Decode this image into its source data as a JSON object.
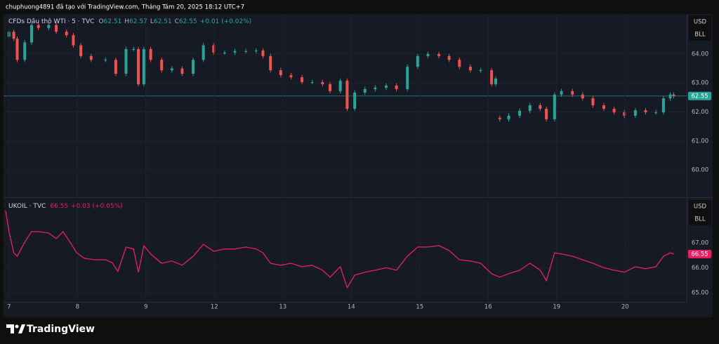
{
  "watermark": "chuphuong4891 đã tạo với TradingView.com, Tháng Tám 20, 2025 18:12 UTC+7",
  "brand": "TradingView",
  "chart_data": [
    {
      "type": "candlestick",
      "title": "CFDs Dầu thô WTI · 5 · TVC",
      "ohlc": [
        {
          "label": "O",
          "value": 62.51
        },
        {
          "label": "H",
          "value": 62.57
        },
        {
          "label": "L",
          "value": 62.51
        },
        {
          "label": "C",
          "value": 62.55
        }
      ],
      "change": "+0.01 (+0.02%)",
      "units": [
        "USD",
        "BLL"
      ],
      "up_color": "#26a69a",
      "down_color": "#ef5350",
      "grid": true,
      "xlim": [
        -0.08,
        9.9
      ],
      "ylim": [
        59.08,
        65.38
      ],
      "yticks": [
        {
          "value": 60,
          "label": "60.00"
        },
        {
          "value": 61,
          "label": "61.00"
        },
        {
          "value": 62,
          "label": "62.00"
        },
        {
          "value": 63,
          "label": "63.00"
        },
        {
          "value": 64,
          "label": "64.00"
        }
      ],
      "x": [
        0,
        0.07,
        0.12,
        0.23,
        0.33,
        0.43,
        0.58,
        0.69,
        0.84,
        0.94,
        1.05,
        1.2,
        1.41,
        1.56,
        1.71,
        1.82,
        1.89,
        1.97,
        2.07,
        2.23,
        2.38,
        2.53,
        2.69,
        2.84,
        2.99,
        3.15,
        3.3,
        3.46,
        3.61,
        3.71,
        3.82,
        3.97,
        4.12,
        4.28,
        4.43,
        4.58,
        4.69,
        4.84,
        4.94,
        5.05,
        5.2,
        5.35,
        5.51,
        5.66,
        5.82,
        5.97,
        6.12,
        6.28,
        6.43,
        6.58,
        6.74,
        6.89,
        7.05,
        7.11,
        7.17,
        7.3,
        7.46,
        7.61,
        7.76,
        7.85,
        7.97,
        8.07,
        8.23,
        8.38,
        8.53,
        8.69,
        8.84,
        8.99,
        9.15,
        9.3,
        9.45,
        9.56,
        9.66,
        9.71
      ],
      "open": [
        64.6,
        64.77,
        64.53,
        63.8,
        64.4,
        65.0,
        64.9,
        65.0,
        64.77,
        64.65,
        64.3,
        63.93,
        63.8,
        63.8,
        63.32,
        64.17,
        64.17,
        62.96,
        64.17,
        63.8,
        63.44,
        63.5,
        63.32,
        63.8,
        64.3,
        64.05,
        64.05,
        64.1,
        64.1,
        64.12,
        63.93,
        63.44,
        63.27,
        63.2,
        63.03,
        63.03,
        62.96,
        62.72,
        63.08,
        62.11,
        62.67,
        62.79,
        62.84,
        62.91,
        62.79,
        63.56,
        63.93,
        64.0,
        63.93,
        63.8,
        63.56,
        63.44,
        63.44,
        62.96,
        61.8,
        61.75,
        61.87,
        62.04,
        62.23,
        62.11,
        61.75,
        62.6,
        62.72,
        62.6,
        62.47,
        62.23,
        62.11,
        61.99,
        61.87,
        62.06,
        61.99,
        61.99,
        62.47,
        62.6
      ],
      "high": [
        64.85,
        64.85,
        64.61,
        64.48,
        65.08,
        65.08,
        65.08,
        65.08,
        64.85,
        64.73,
        64.38,
        64.01,
        63.88,
        63.88,
        64.25,
        64.25,
        64.25,
        64.25,
        64.25,
        63.88,
        63.58,
        63.58,
        63.88,
        64.38,
        64.38,
        64.13,
        64.18,
        64.18,
        64.2,
        64.2,
        64.01,
        63.52,
        63.35,
        63.28,
        63.11,
        63.11,
        63.04,
        63.16,
        63.16,
        62.75,
        62.87,
        62.92,
        62.99,
        62.99,
        63.64,
        64.01,
        64.08,
        64.08,
        64.01,
        63.88,
        63.64,
        63.52,
        63.52,
        63.23,
        61.88,
        61.95,
        62.12,
        62.31,
        62.31,
        62.19,
        62.68,
        62.8,
        62.8,
        62.68,
        62.55,
        62.31,
        62.19,
        62.07,
        62.14,
        62.14,
        62.07,
        62.55,
        62.68,
        62.68
      ],
      "low": [
        64.52,
        64.45,
        63.72,
        63.72,
        64.32,
        64.82,
        64.82,
        64.69,
        64.57,
        64.22,
        63.85,
        63.72,
        63.72,
        63.24,
        63.24,
        64.09,
        62.88,
        62.88,
        63.72,
        63.36,
        63.36,
        63.24,
        63.24,
        63.72,
        63.97,
        63.97,
        63.97,
        64.02,
        64.02,
        63.85,
        63.36,
        63.19,
        63.12,
        62.95,
        62.95,
        62.88,
        62.64,
        62.64,
        62.03,
        62.03,
        62.59,
        62.71,
        62.76,
        62.71,
        62.71,
        63.48,
        63.85,
        63.85,
        63.72,
        63.48,
        63.36,
        63.36,
        62.88,
        62.88,
        61.67,
        61.67,
        61.79,
        61.96,
        62.03,
        61.67,
        61.67,
        62.52,
        62.52,
        62.39,
        62.15,
        62.03,
        61.91,
        61.79,
        61.79,
        61.91,
        61.91,
        61.91,
        62.39,
        62.47
      ],
      "close": [
        64.77,
        64.53,
        63.8,
        64.4,
        65.0,
        64.9,
        65.0,
        64.77,
        64.65,
        64.3,
        63.93,
        63.8,
        63.8,
        63.32,
        64.17,
        64.17,
        62.96,
        64.17,
        63.8,
        63.44,
        63.5,
        63.32,
        63.8,
        64.3,
        64.05,
        64.05,
        64.1,
        64.1,
        64.12,
        63.93,
        63.44,
        63.27,
        63.2,
        63.03,
        63.03,
        62.96,
        62.72,
        63.08,
        62.11,
        62.67,
        62.79,
        62.84,
        62.91,
        62.79,
        63.56,
        63.93,
        64.0,
        63.93,
        63.8,
        63.56,
        63.44,
        63.44,
        62.96,
        63.15,
        61.75,
        61.87,
        62.04,
        62.23,
        62.11,
        61.75,
        62.6,
        62.72,
        62.6,
        62.47,
        62.23,
        62.11,
        61.99,
        61.87,
        62.06,
        61.99,
        61.99,
        62.47,
        62.6,
        62.55
      ]
    },
    {
      "type": "line",
      "title": "UKOIL · TVC",
      "last_price": 66.55,
      "change": "+0.03 (+0.05%)",
      "units": [
        "USD",
        "BLL"
      ],
      "color": "#e91e63",
      "grid": true,
      "xlim": [
        -0.08,
        9.9
      ],
      "ylim": [
        64.63,
        68.77
      ],
      "yticks": [
        {
          "value": 65,
          "label": "65.00"
        },
        {
          "value": 66,
          "label": "66.00"
        },
        {
          "value": 67,
          "label": "67.00"
        }
      ],
      "xticks": [
        {
          "value": 0,
          "label": "7"
        },
        {
          "value": 1,
          "label": "8"
        },
        {
          "value": 2,
          "label": "9"
        },
        {
          "value": 3,
          "label": "12"
        },
        {
          "value": 4,
          "label": "13"
        },
        {
          "value": 5,
          "label": "14"
        },
        {
          "value": 6,
          "label": "15"
        },
        {
          "value": 7,
          "label": "16"
        },
        {
          "value": 8,
          "label": "19"
        },
        {
          "value": 9,
          "label": "20"
        }
      ],
      "x": [
        -0.05,
        0,
        0.07,
        0.12,
        0.23,
        0.33,
        0.43,
        0.58,
        0.69,
        0.79,
        0.89,
        0.99,
        1.1,
        1.25,
        1.41,
        1.51,
        1.59,
        1.71,
        1.82,
        1.89,
        1.97,
        2.07,
        2.23,
        2.38,
        2.53,
        2.69,
        2.84,
        2.99,
        3.15,
        3.3,
        3.46,
        3.61,
        3.71,
        3.82,
        3.97,
        4.12,
        4.28,
        4.43,
        4.58,
        4.69,
        4.84,
        4.94,
        5.05,
        5.2,
        5.35,
        5.51,
        5.66,
        5.82,
        5.97,
        6.12,
        6.28,
        6.43,
        6.58,
        6.74,
        6.89,
        7.05,
        7.17,
        7.3,
        7.46,
        7.61,
        7.76,
        7.85,
        7.97,
        8.07,
        8.23,
        8.38,
        8.53,
        8.69,
        8.84,
        8.99,
        9.15,
        9.3,
        9.45,
        9.56,
        9.66,
        9.71
      ],
      "values": [
        68.3,
        67.45,
        66.6,
        66.46,
        67.03,
        67.45,
        67.45,
        67.39,
        67.17,
        67.45,
        67.03,
        66.6,
        66.38,
        66.32,
        66.32,
        66.2,
        65.85,
        66.83,
        66.75,
        65.82,
        66.89,
        66.55,
        66.18,
        66.27,
        66.1,
        66.46,
        66.94,
        66.66,
        66.75,
        66.75,
        66.83,
        66.75,
        66.6,
        66.18,
        66.1,
        66.18,
        66.04,
        66.1,
        65.9,
        65.62,
        66.04,
        65.2,
        65.7,
        65.82,
        65.9,
        66.0,
        65.9,
        66.46,
        66.83,
        66.83,
        66.89,
        66.69,
        66.32,
        66.27,
        66.18,
        65.76,
        65.62,
        65.76,
        65.9,
        66.18,
        65.9,
        65.48,
        66.6,
        66.55,
        66.46,
        66.32,
        66.18,
        66.0,
        65.9,
        65.82,
        66.04,
        65.96,
        66.04,
        66.46,
        66.6,
        66.55
      ]
    }
  ]
}
